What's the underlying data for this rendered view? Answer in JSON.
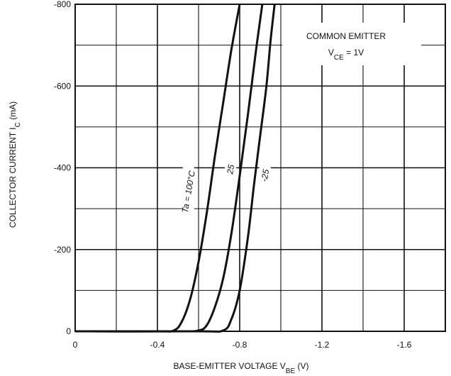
{
  "chart_data": {
    "type": "line",
    "xlabel": "BASE-EMITTER VOLTAGE V",
    "xlabel_sub": "BE",
    "xlabel_unit": " (V)",
    "ylabel": "COLLECTOR CURRENT I",
    "ylabel_sub": "C",
    "ylabel_unit": " (mA)",
    "xlim": [
      0,
      -1.8
    ],
    "ylim": [
      0,
      -800
    ],
    "x_ticks": [
      0,
      -0.4,
      -0.8,
      -1.2,
      -1.6
    ],
    "x_tick_labels": [
      "0",
      "-0.4",
      "-0.8",
      "-1.2",
      "-1.6"
    ],
    "y_ticks": [
      0,
      -200,
      -400,
      -600,
      -800
    ],
    "y_tick_labels": [
      "0",
      "-200",
      "-400",
      "-600",
      "-800"
    ],
    "grid": true,
    "annotation": {
      "line1": "COMMON EMITTER",
      "line2_main": "V",
      "line2_sub": "CE",
      "line2_rest": " = 1V"
    },
    "series": [
      {
        "name": "Ta = 100°C",
        "x": [
          0,
          -0.4,
          -0.48,
          -0.52,
          -0.56,
          -0.6,
          -0.64,
          -0.68,
          -0.72,
          -0.76,
          -0.8
        ],
        "y": [
          0,
          0,
          -2,
          -25,
          -80,
          -170,
          -290,
          -430,
          -560,
          -690,
          -800
        ]
      },
      {
        "name": "25",
        "x": [
          0,
          -0.5,
          -0.6,
          -0.64,
          -0.68,
          -0.72,
          -0.76,
          -0.8,
          -0.84,
          -0.88,
          -0.91
        ],
        "y": [
          0,
          0,
          -2,
          -15,
          -60,
          -130,
          -240,
          -380,
          -530,
          -690,
          -800
        ]
      },
      {
        "name": "-25",
        "x": [
          0,
          -0.6,
          -0.72,
          -0.76,
          -0.8,
          -0.84,
          -0.87,
          -0.9,
          -0.93,
          -0.95,
          -0.97
        ],
        "y": [
          0,
          0,
          -2,
          -30,
          -100,
          -230,
          -360,
          -480,
          -600,
          -710,
          -800
        ]
      }
    ]
  }
}
